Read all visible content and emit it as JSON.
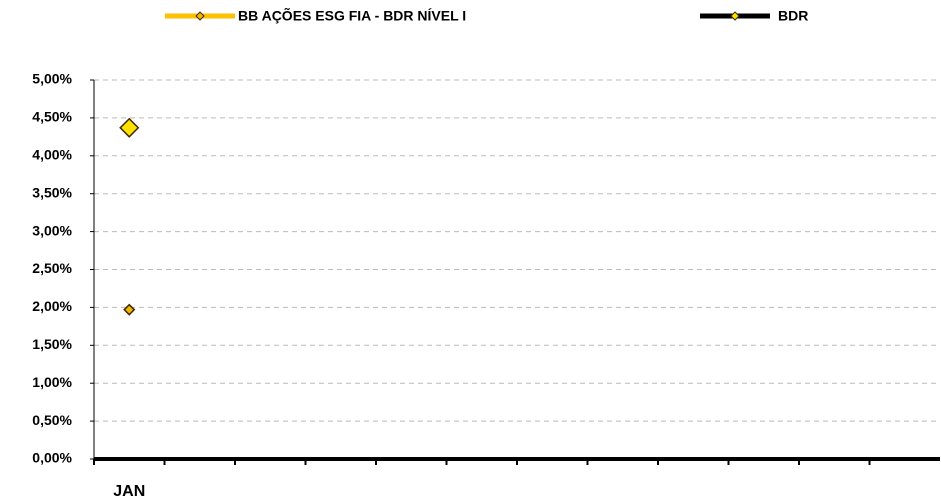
{
  "chart_data": {
    "type": "line",
    "categories": [
      "JAN",
      null,
      null,
      null,
      null,
      null,
      null,
      null,
      null,
      null,
      null,
      null
    ],
    "series": [
      {
        "name": "BB AÇÕES ESG FIA - BDR NÍVEL I",
        "color": "#ffc000",
        "marker_color": "#f7b500",
        "marker_size": 5,
        "values": [
          1.97,
          null,
          null,
          null,
          null,
          null,
          null,
          null,
          null,
          null,
          null,
          null
        ]
      },
      {
        "name": "BDR",
        "color": "#000000",
        "marker_color": "#ffe000",
        "marker_size": 9,
        "values": [
          4.37,
          null,
          null,
          null,
          null,
          null,
          null,
          null,
          null,
          null,
          null,
          null
        ]
      }
    ],
    "ylim": [
      0,
      5
    ],
    "yticks": [
      {
        "value": 0,
        "label": "0,00%"
      },
      {
        "value": 0.5,
        "label": "0,50%"
      },
      {
        "value": 1,
        "label": "1,00%"
      },
      {
        "value": 1.5,
        "label": "1,50%"
      },
      {
        "value": 2,
        "label": "2,00%"
      },
      {
        "value": 2.5,
        "label": "2,50%"
      },
      {
        "value": 3,
        "label": "3,00%"
      },
      {
        "value": 3.5,
        "label": "3,50%"
      },
      {
        "value": 4,
        "label": "4,00%"
      },
      {
        "value": 4.5,
        "label": "4,50%"
      },
      {
        "value": 5,
        "label": "5,00%"
      }
    ],
    "grid": true,
    "legend": "top"
  }
}
